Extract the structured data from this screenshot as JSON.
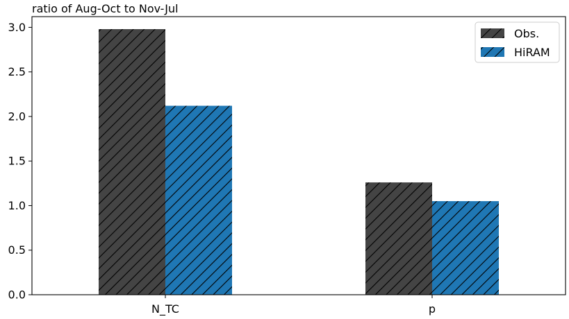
{
  "chart_data": {
    "type": "bar",
    "title": "ratio of Aug-Oct to Nov-Jul",
    "xlabel": "",
    "ylabel": "",
    "categories": [
      "N_TC",
      "p"
    ],
    "series": [
      {
        "name": "Obs.",
        "values": [
          2.98,
          1.26
        ],
        "color": "#444444",
        "hatch": "diagonal"
      },
      {
        "name": "HiRAM",
        "values": [
          2.12,
          1.05
        ],
        "color": "#1f77b4",
        "hatch": "diagonal"
      }
    ],
    "ylim": [
      0,
      3.12
    ],
    "yticks": [
      "0.0",
      "0.5",
      "1.0",
      "1.5",
      "2.0",
      "2.5",
      "3.0"
    ],
    "legend": "top-right",
    "grid": false
  }
}
